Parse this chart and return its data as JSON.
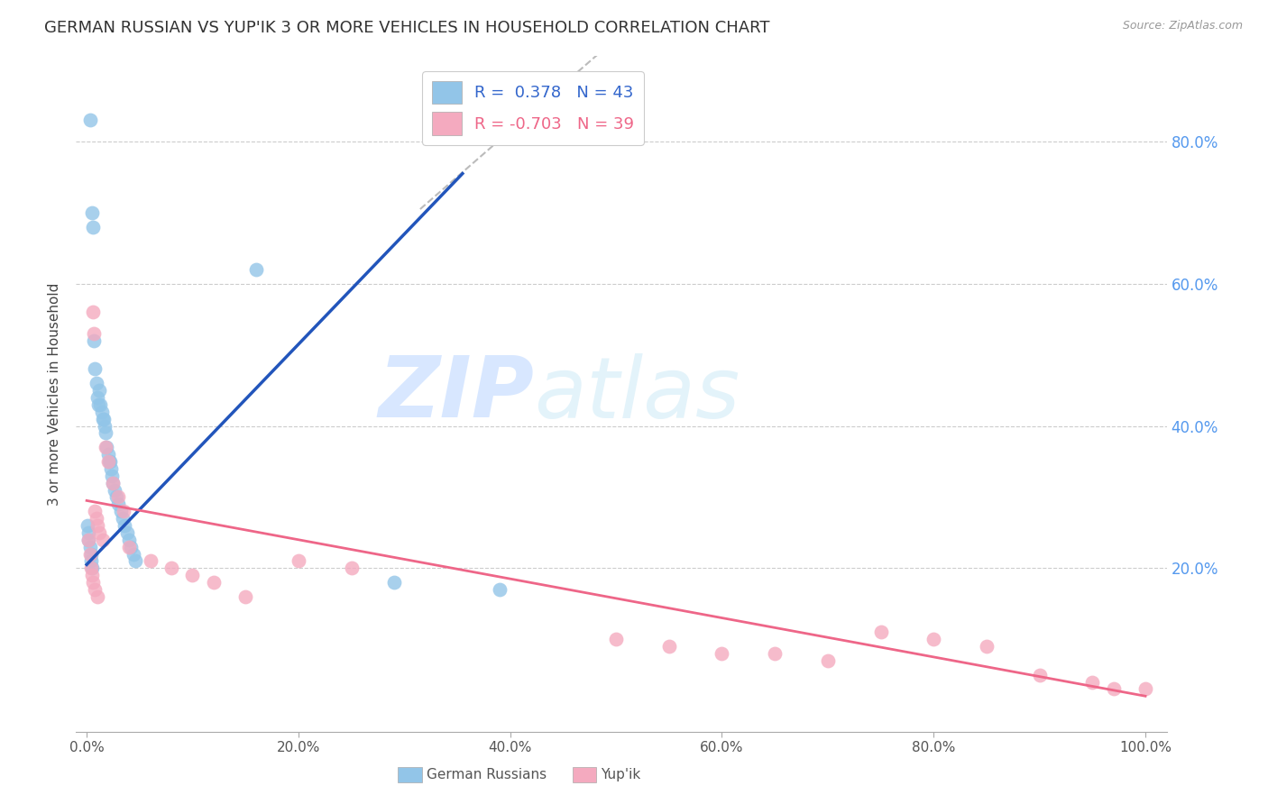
{
  "title": "GERMAN RUSSIAN VS YUP'IK 3 OR MORE VEHICLES IN HOUSEHOLD CORRELATION CHART",
  "source": "Source: ZipAtlas.com",
  "ylabel": "3 or more Vehicles in Household",
  "watermark_zip": "ZIP",
  "watermark_atlas": "atlas",
  "blue_color": "#92C5E8",
  "pink_color": "#F4AABF",
  "blue_line_color": "#2255BB",
  "pink_line_color": "#EE6688",
  "gray_line_color": "#BBBBBB",
  "background_color": "#FFFFFF",
  "grid_color": "#CCCCCC",
  "right_tick_color": "#5599EE",
  "title_fontsize": 13,
  "axis_label_fontsize": 11,
  "tick_fontsize": 11,
  "gr_x": [
    0.003,
    0.005,
    0.006,
    0.007,
    0.008,
    0.009,
    0.01,
    0.011,
    0.012,
    0.013,
    0.014,
    0.015,
    0.016,
    0.017,
    0.018,
    0.019,
    0.02,
    0.021,
    0.022,
    0.023,
    0.024,
    0.025,
    0.026,
    0.028,
    0.03,
    0.032,
    0.034,
    0.036,
    0.038,
    0.04,
    0.042,
    0.044,
    0.046,
    0.001,
    0.002,
    0.002,
    0.003,
    0.004,
    0.004,
    0.005,
    0.16,
    0.29,
    0.39
  ],
  "gr_y": [
    0.83,
    0.7,
    0.68,
    0.52,
    0.48,
    0.46,
    0.44,
    0.43,
    0.45,
    0.43,
    0.42,
    0.41,
    0.41,
    0.4,
    0.39,
    0.37,
    0.36,
    0.35,
    0.35,
    0.34,
    0.33,
    0.32,
    0.31,
    0.3,
    0.29,
    0.28,
    0.27,
    0.26,
    0.25,
    0.24,
    0.23,
    0.22,
    0.21,
    0.26,
    0.25,
    0.24,
    0.23,
    0.22,
    0.21,
    0.2,
    0.62,
    0.18,
    0.17
  ],
  "yp_x": [
    0.002,
    0.003,
    0.004,
    0.006,
    0.007,
    0.008,
    0.009,
    0.01,
    0.012,
    0.015,
    0.018,
    0.02,
    0.025,
    0.03,
    0.035,
    0.005,
    0.006,
    0.008,
    0.01,
    0.04,
    0.06,
    0.08,
    0.1,
    0.12,
    0.15,
    0.2,
    0.25,
    0.5,
    0.55,
    0.6,
    0.65,
    0.7,
    0.75,
    0.8,
    0.85,
    0.9,
    0.95,
    0.97,
    1.0
  ],
  "yp_y": [
    0.24,
    0.22,
    0.2,
    0.56,
    0.53,
    0.28,
    0.27,
    0.26,
    0.25,
    0.24,
    0.37,
    0.35,
    0.32,
    0.3,
    0.28,
    0.19,
    0.18,
    0.17,
    0.16,
    0.23,
    0.21,
    0.2,
    0.19,
    0.18,
    0.16,
    0.21,
    0.2,
    0.1,
    0.09,
    0.08,
    0.08,
    0.07,
    0.11,
    0.1,
    0.09,
    0.05,
    0.04,
    0.03,
    0.03
  ],
  "blue_line_x": [
    0.0,
    0.355
  ],
  "blue_line_y": [
    0.205,
    0.755
  ],
  "gray_line_x": [
    0.315,
    0.5
  ],
  "gray_line_y": [
    0.705,
    0.945
  ],
  "pink_line_x": [
    0.0,
    1.0
  ],
  "pink_line_y": [
    0.295,
    0.02
  ],
  "xlim": [
    -0.01,
    1.02
  ],
  "ylim": [
    -0.03,
    0.92
  ],
  "xtick_vals": [
    0.0,
    0.2,
    0.4,
    0.6,
    0.8,
    1.0
  ],
  "xtick_labels": [
    "0.0%",
    "20.0%",
    "40.0%",
    "60.0%",
    "80.0%",
    "100.0%"
  ],
  "right_ytick_vals": [
    0.2,
    0.4,
    0.6,
    0.8
  ],
  "right_ytick_labels": [
    "20.0%",
    "40.0%",
    "60.0%",
    "80.0%"
  ],
  "legend_line1": "R =  0.378   N = 43",
  "legend_line2": "R = -0.703   N = 39",
  "legend_color1": "#3366CC",
  "legend_color2": "#EE6688",
  "bottom_label1": "German Russians",
  "bottom_label2": "Yup'ik"
}
